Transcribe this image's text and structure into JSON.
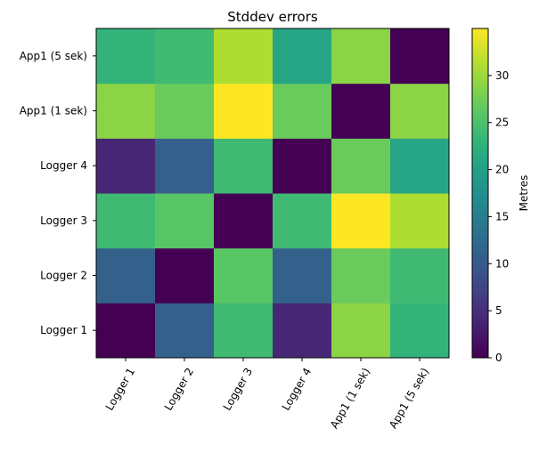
{
  "chart_data": {
    "type": "heatmap",
    "title": "Stddev errors",
    "x_categories": [
      "Logger 1",
      "Logger 2",
      "Logger 3",
      "Logger 4",
      "App1 (1 sek)",
      "App1 (5 sek)"
    ],
    "y_categories": [
      "Logger 1",
      "Logger 2",
      "Logger 3",
      "Logger 4",
      "App1 (1 sek)",
      "App1 (5 sek)"
    ],
    "values": [
      [
        0,
        11,
        24,
        4,
        29,
        23
      ],
      [
        11,
        0,
        26,
        11,
        27,
        24
      ],
      [
        24,
        26,
        0,
        24,
        35,
        31
      ],
      [
        4,
        11,
        24,
        0,
        27,
        21
      ],
      [
        29,
        27,
        35,
        27,
        0,
        29
      ],
      [
        23,
        24,
        31,
        21,
        29,
        0
      ]
    ],
    "colorbar": {
      "label": "Metres",
      "range": [
        0,
        35
      ],
      "ticks": [
        0,
        5,
        10,
        15,
        20,
        25,
        30
      ],
      "colormap": "viridis"
    },
    "x_tick_rotation_deg": 60,
    "origin": "lower",
    "grid": false
  }
}
